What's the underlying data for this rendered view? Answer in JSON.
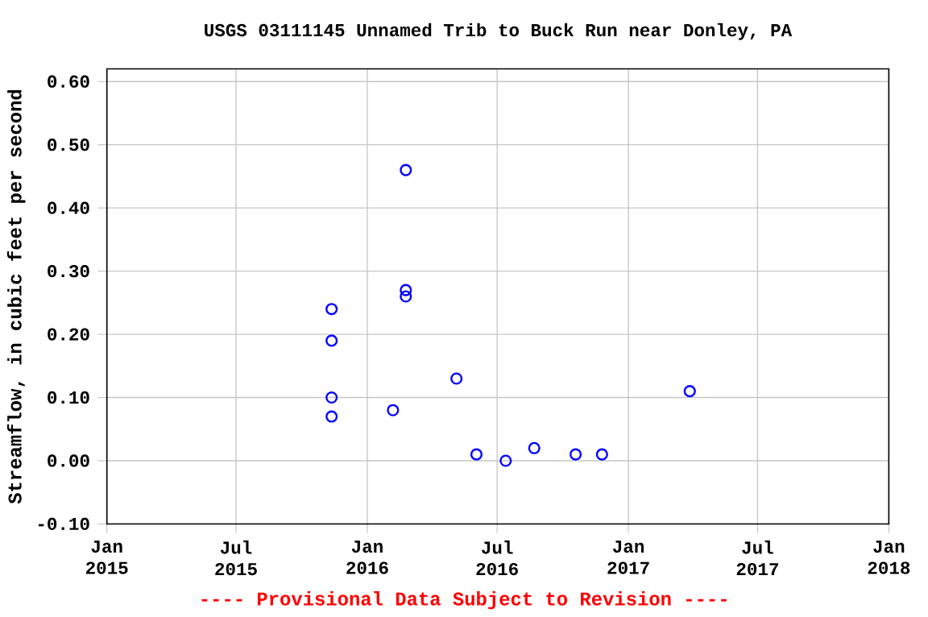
{
  "chart_data": {
    "type": "scatter",
    "title": "USGS 03111145 Unnamed Trib to Buck Run near Donley, PA",
    "ylabel": "Streamflow, in cubic feet per second",
    "annotations": [
      "---- Provisional Data Subject to Revision ----"
    ],
    "series": [
      {
        "color": "#0000ff",
        "x": [
          "2015-11-12",
          "2015-11-12",
          "2015-11-12",
          "2015-11-12",
          "2016-02-06",
          "2016-02-24",
          "2016-02-24",
          "2016-02-24",
          "2016-05-05",
          "2016-06-02",
          "2016-07-13",
          "2016-08-22",
          "2016-10-19",
          "2016-11-25",
          "2017-03-28"
        ],
        "values": [
          0.24,
          0.19,
          0.1,
          0.07,
          0.08,
          0.46,
          0.27,
          0.26,
          0.13,
          0.01,
          0.0,
          0.02,
          0.01,
          0.01,
          0.11
        ]
      }
    ],
    "marker": "circle",
    "grid": true,
    "xlim": [
      "2015-01-01",
      "2018-01-01"
    ],
    "xticks": [
      {
        "value": "2015-01-01",
        "label": "Jan 2015"
      },
      {
        "value": "2015-07-01",
        "label": "Jul 2015"
      },
      {
        "value": "2016-01-01",
        "label": "Jan 2016"
      },
      {
        "value": "2016-07-01",
        "label": "Jul 2016"
      },
      {
        "value": "2017-01-01",
        "label": "Jan 2017"
      },
      {
        "value": "2017-07-01",
        "label": "Jul 2017"
      },
      {
        "value": "2018-01-01",
        "label": "Jan 2018"
      }
    ],
    "ylim": [
      -0.1,
      0.62
    ],
    "yticks": [
      {
        "value": -0.1,
        "label": "-0.10"
      },
      {
        "value": 0.0,
        "label": "0.00"
      },
      {
        "value": 0.1,
        "label": "0.10"
      },
      {
        "value": 0.2,
        "label": "0.20"
      },
      {
        "value": 0.3,
        "label": "0.30"
      },
      {
        "value": 0.4,
        "label": "0.40"
      },
      {
        "value": 0.5,
        "label": "0.50"
      },
      {
        "value": 0.6,
        "label": "0.60"
      }
    ]
  }
}
